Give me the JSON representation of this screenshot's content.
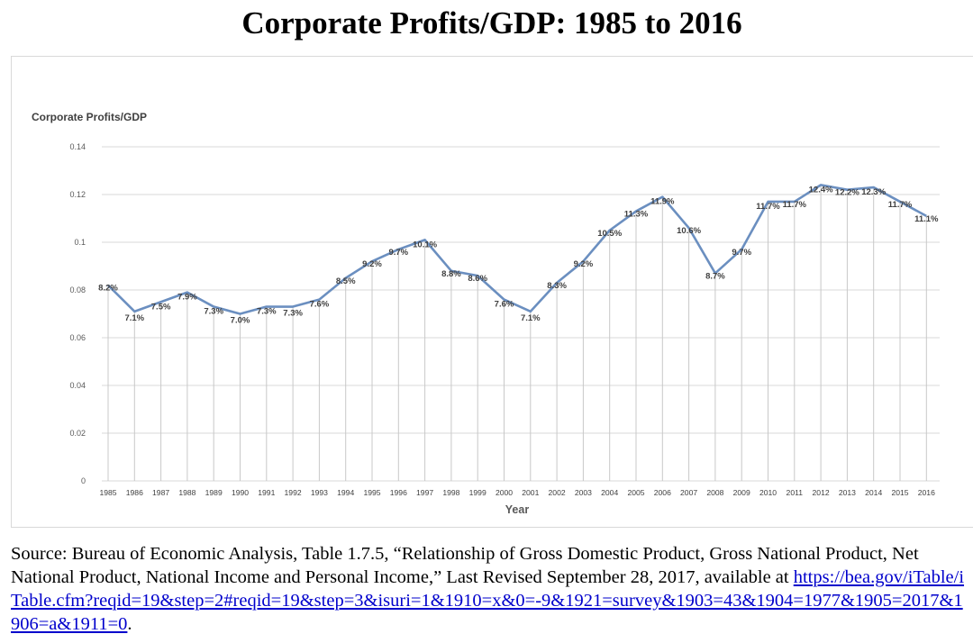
{
  "title": "Corporate Profits/GDP: 1985 to 2016",
  "source": {
    "text": "Source: Bureau of Economic Analysis, Table 1.7.5, “Relationship of Gross Domestic Product, Gross National Product, Net National Product, National Income and Personal Income,” Last Revised September 28, 2017, available at ",
    "link": "https://bea.gov/iTable/iTable.cfm?reqid=19&step=2#reqid=19&step=3&isuri=1&1910=x&0=-9&1921=survey&1903=43&1904=1977&1905=2017&1906=a&1911=0",
    "end": "."
  },
  "chart_data": {
    "type": "line",
    "title": "Corporate Profits/GDP",
    "xlabel": "Year",
    "ylabel": "",
    "ylim": [
      0,
      0.14
    ],
    "yticks": [
      "0",
      "0.02",
      "0.04",
      "0.06",
      "0.08",
      "0.1",
      "0.12",
      "0.14"
    ],
    "grid": true,
    "drop_lines": true,
    "line_color": "#6b8fc0",
    "categories": [
      "1985",
      "1986",
      "1987",
      "1988",
      "1989",
      "1990",
      "1991",
      "1992",
      "1993",
      "1994",
      "1995",
      "1996",
      "1997",
      "1998",
      "1999",
      "2000",
      "2001",
      "2002",
      "2003",
      "2004",
      "2005",
      "2006",
      "2007",
      "2008",
      "2009",
      "2010",
      "2011",
      "2012",
      "2013",
      "2014",
      "2015",
      "2016"
    ],
    "values": [
      0.082,
      0.071,
      0.075,
      0.079,
      0.073,
      0.07,
      0.073,
      0.073,
      0.076,
      0.085,
      0.092,
      0.097,
      0.101,
      0.088,
      0.086,
      0.076,
      0.071,
      0.083,
      0.092,
      0.105,
      0.113,
      0.119,
      0.106,
      0.087,
      0.097,
      0.117,
      0.117,
      0.124,
      0.122,
      0.123,
      0.117,
      0.111
    ],
    "labels": [
      "8.2%",
      "7.1%",
      "7.5%",
      "7.9%",
      "7.3%",
      "7.0%",
      "7.3%",
      "7.3%",
      "7.6%",
      "8.5%",
      "9.2%",
      "9.7%",
      "10.1%",
      "8.8%",
      "8.6%",
      "7.6%",
      "7.1%",
      "8.3%",
      "9.2%",
      "10.5%",
      "11.3%",
      "11.9%",
      "10.6%",
      "8.7%",
      "9.7%",
      "11.7%",
      "11.7%",
      "12.4%",
      "12.2%",
      "12.3%",
      "11.7%",
      "11.1%"
    ]
  }
}
